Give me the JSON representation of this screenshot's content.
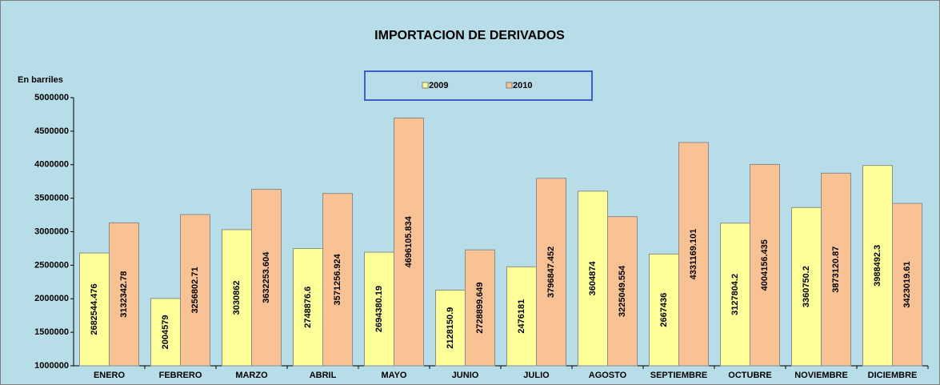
{
  "chart_data": {
    "type": "bar",
    "title": "IMPORTACION DE DERIVADOS",
    "y_label": "En barriles",
    "categories": [
      "ENERO",
      "FEBRERO",
      "MARZO",
      "ABRIL",
      "MAYO",
      "JUNIO",
      "JULIO",
      "AGOSTO",
      "SEPTIEMBRE",
      "OCTUBRE",
      "NOVIEMBRE",
      "DICIEMBRE"
    ],
    "series": [
      {
        "name": "2009",
        "color": "#ffff99",
        "values": [
          2682544.476,
          2004579,
          3030862,
          2748876.6,
          2694380.19,
          2128150.9,
          2476181,
          3604874,
          2667436,
          3127804.2,
          3360750.2,
          3988492.3
        ]
      },
      {
        "name": "2010",
        "color": "#f9c294",
        "values": [
          3132342.78,
          3256802.71,
          3632253.604,
          3571256.924,
          4696105.834,
          2728899.649,
          3796847.452,
          3225049.554,
          4331169.101,
          4004156.435,
          3873120.87,
          3423019.61
        ]
      }
    ],
    "ylim": [
      1000000,
      5000000
    ],
    "yticks": [
      1000000,
      1500000,
      2000000,
      2500000,
      3000000,
      3500000,
      4000000,
      4500000,
      5000000
    ],
    "legend": "top",
    "grid": false
  }
}
